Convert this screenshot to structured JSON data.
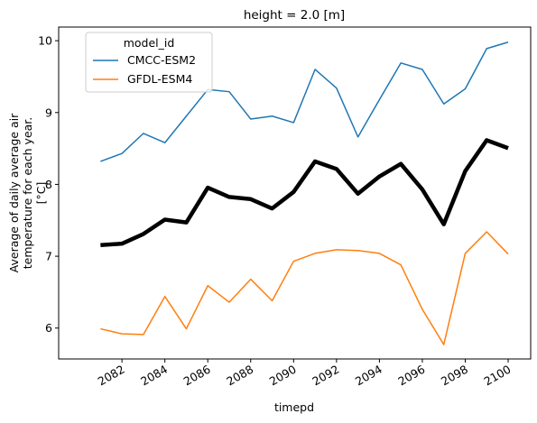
{
  "chart_data": {
    "type": "line",
    "title": "height = 2.0 [m]",
    "xlabel": "timepd",
    "ylabel": [
      "Average of daily average air",
      "temperature for each year.",
      "[°C]"
    ],
    "legend_title": "model_id",
    "legend": "upper left",
    "x": [
      2081,
      2082,
      2083,
      2084,
      2085,
      2086,
      2087,
      2088,
      2089,
      2090,
      2091,
      2092,
      2093,
      2094,
      2095,
      2096,
      2097,
      2098,
      2099,
      2100
    ],
    "series": [
      {
        "name": "CMCC-ESM2",
        "color": "#1f77b4",
        "width": 1.5,
        "values": [
          8.32,
          8.43,
          8.71,
          8.58,
          8.95,
          9.32,
          9.29,
          8.91,
          8.95,
          8.86,
          9.6,
          9.34,
          8.66,
          9.18,
          9.69,
          9.6,
          9.12,
          9.33,
          9.89,
          9.98
        ]
      },
      {
        "name": "GFDL-ESM4",
        "color": "#ff7f0e",
        "width": 1.5,
        "values": [
          5.99,
          5.92,
          5.91,
          6.44,
          5.99,
          6.59,
          6.36,
          6.68,
          6.38,
          6.93,
          7.04,
          7.09,
          7.08,
          7.04,
          6.88,
          6.26,
          5.77,
          7.04,
          7.34,
          7.03
        ]
      },
      {
        "color": "#000000",
        "width": 4.5,
        "values": [
          7.155,
          7.175,
          7.31,
          7.51,
          7.47,
          7.955,
          7.825,
          7.795,
          7.665,
          7.895,
          8.32,
          8.215,
          7.87,
          8.11,
          8.285,
          7.93,
          7.445,
          8.185,
          8.615,
          8.505
        ]
      }
    ],
    "xlim": [
      2079.05,
      2101.05
    ],
    "xticks": [
      2082,
      2084,
      2086,
      2088,
      2090,
      2092,
      2094,
      2096,
      2098,
      2100
    ],
    "ylim": [
      5.57,
      10.19
    ],
    "yticks": [
      6,
      7,
      8,
      9,
      10
    ]
  }
}
